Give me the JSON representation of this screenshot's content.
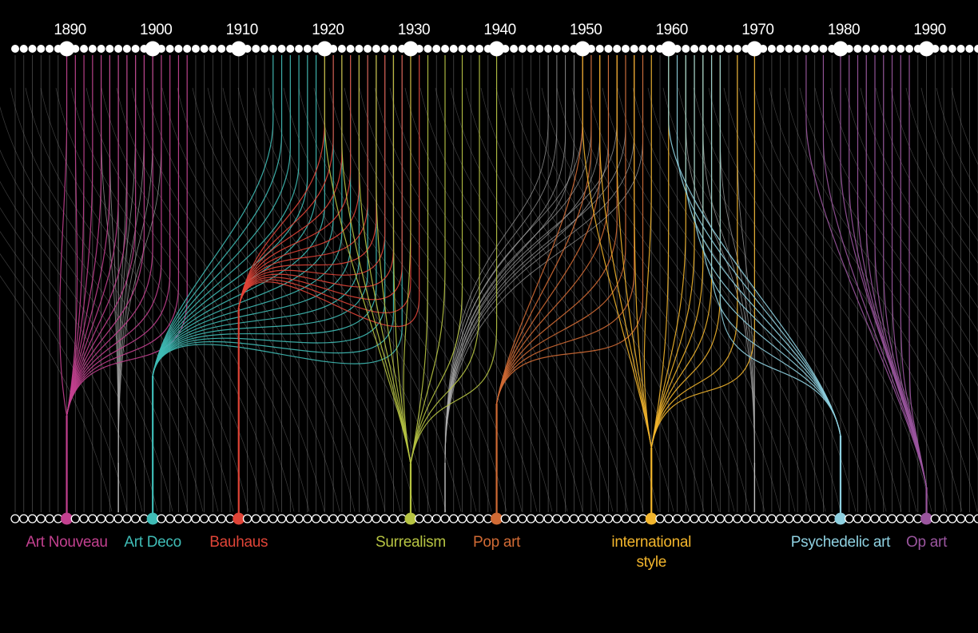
{
  "background": "#000000",
  "base_line_color": "#8a8a8a",
  "timeline": {
    "start_year": 1884,
    "end_year": 1996,
    "decade_labels": [
      "1890",
      "1900",
      "1910",
      "1920",
      "1930",
      "1940",
      "1950",
      "1960",
      "1970",
      "1980",
      "1990"
    ]
  },
  "movements": [
    {
      "name": "Art Nouveau",
      "label_lines": [
        "Art Nouveau"
      ],
      "year": 1890,
      "color": "#c2408f",
      "influences": [
        1890,
        1891,
        1892,
        1893,
        1894,
        1895,
        1896,
        1897,
        1898,
        1899,
        1900,
        1901,
        1902,
        1903,
        1904
      ]
    },
    {
      "name": "Art Deco",
      "label_lines": [
        "Art Deco"
      ],
      "year": 1900,
      "color": "#3fbcb6",
      "influences": [
        1914,
        1915,
        1916,
        1917,
        1918,
        1919,
        1920,
        1921,
        1922,
        1923,
        1924,
        1925,
        1926,
        1927,
        1928,
        1929
      ]
    },
    {
      "name": "Bauhaus",
      "label_lines": [
        "Bauhaus"
      ],
      "year": 1910,
      "color": "#e04437",
      "influences": [
        1920,
        1921,
        1922,
        1923,
        1924,
        1925,
        1926,
        1927,
        1928,
        1929,
        1930,
        1931
      ]
    },
    {
      "name": "Surrealism",
      "label_lines": [
        "Surrealism"
      ],
      "year": 1930,
      "color": "#b7c442",
      "influences": [
        1920,
        1922,
        1924,
        1926,
        1928,
        1930,
        1932,
        1934,
        1936,
        1938,
        1940
      ]
    },
    {
      "name": "Pop art",
      "label_lines": [
        "Pop art"
      ],
      "year": 1940,
      "color": "#d06a34",
      "influences": [
        1950,
        1951,
        1952,
        1953,
        1954,
        1955,
        1956,
        1957
      ]
    },
    {
      "name": "international style",
      "label_lines": [
        "international",
        "style"
      ],
      "year": 1958,
      "color": "#f2b52c",
      "influences": [
        1950,
        1952,
        1954,
        1956,
        1958,
        1960,
        1962,
        1963,
        1964,
        1965,
        1966,
        1968,
        1970
      ]
    },
    {
      "name": "Psychedelic art",
      "label_lines": [
        "Psychedelic art"
      ],
      "year": 1980,
      "color": "#8ed0e0",
      "influences": [
        1960,
        1961,
        1962,
        1963,
        1964,
        1965,
        1966
      ]
    },
    {
      "name": "Op art",
      "label_lines": [
        "Op art"
      ],
      "year": 1990,
      "color": "#9a559e",
      "influences": [
        1976,
        1978,
        1980,
        1981,
        1982,
        1983,
        1984,
        1985,
        1986,
        1987,
        1988
      ]
    }
  ],
  "grey_bundles": [
    {
      "target_year": 1896,
      "sources": [
        1894,
        1895,
        1896,
        1897,
        1898,
        1899,
        1900,
        1901
      ]
    },
    {
      "target_year": 1934,
      "sources": [
        1946,
        1947,
        1948,
        1949,
        1950,
        1951,
        1952,
        1953,
        1954,
        1955,
        1956,
        1957
      ]
    },
    {
      "target_year": 1970,
      "sources": [
        1962,
        1964,
        1966,
        1968,
        1970
      ]
    }
  ]
}
